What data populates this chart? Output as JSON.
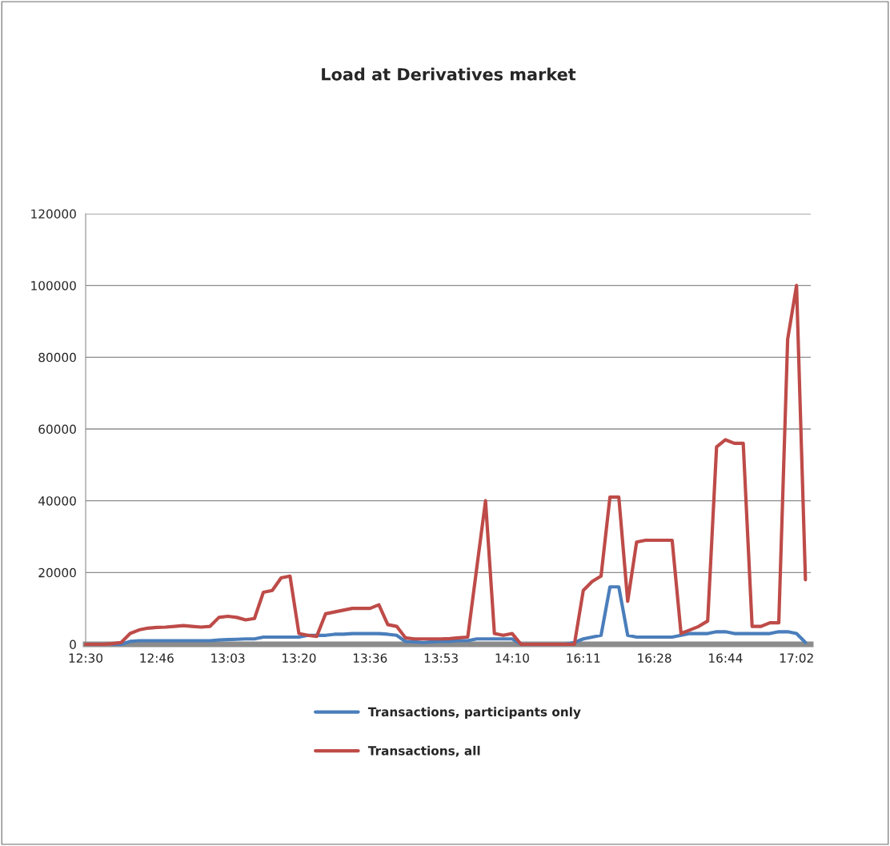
{
  "chart_data": {
    "type": "line",
    "title": "Load at Derivatives market",
    "categories": [
      "12:30",
      null,
      null,
      null,
      null,
      null,
      null,
      null,
      "12:46",
      null,
      null,
      null,
      null,
      null,
      null,
      null,
      "13:03",
      null,
      null,
      null,
      null,
      null,
      null,
      null,
      "13:20",
      null,
      null,
      null,
      null,
      null,
      null,
      null,
      "13:36",
      null,
      null,
      null,
      null,
      null,
      null,
      null,
      "13:53",
      null,
      null,
      null,
      null,
      null,
      null,
      null,
      "14:10",
      null,
      null,
      null,
      null,
      null,
      null,
      null,
      "16:11",
      null,
      null,
      null,
      null,
      null,
      null,
      null,
      "16:28",
      null,
      null,
      null,
      null,
      null,
      null,
      null,
      "16:44",
      null,
      null,
      null,
      null,
      null,
      null,
      null,
      "17:02",
      null
    ],
    "series": [
      {
        "name": "Transactions, participants only",
        "color": "#4a7ebb",
        "values": [
          null,
          null,
          null,
          0,
          0,
          800,
          1000,
          1000,
          1000,
          1000,
          1000,
          1000,
          1000,
          1000,
          1000,
          1200,
          1300,
          1400,
          1500,
          1500,
          2000,
          2000,
          2000,
          2000,
          2000,
          2500,
          2500,
          2500,
          2800,
          2800,
          3000,
          3000,
          3000,
          3000,
          2800,
          2500,
          800,
          700,
          500,
          700,
          800,
          800,
          1000,
          1000,
          1500,
          1500,
          1500,
          1500,
          1500,
          0,
          0,
          0,
          0,
          0,
          0,
          500,
          1500,
          2000,
          2500,
          16000,
          16000,
          2500,
          2000,
          2000,
          2000,
          2000,
          2000,
          2500,
          3000,
          3000,
          3000,
          3500,
          3500,
          3000,
          3000,
          3000,
          3000,
          3000,
          3500,
          3500,
          3000,
          500
        ]
      },
      {
        "name": "Transactions, all",
        "color": "#be4b48",
        "values": [
          0,
          0,
          0,
          200,
          500,
          3000,
          4000,
          4500,
          4700,
          4800,
          5000,
          5200,
          5000,
          4800,
          5000,
          7500,
          7800,
          7500,
          6800,
          7200,
          14500,
          15000,
          18500,
          19000,
          3000,
          2500,
          2200,
          8500,
          9000,
          9500,
          10000,
          10000,
          10000,
          11000,
          5500,
          5000,
          1800,
          1500,
          1500,
          1500,
          1500,
          1600,
          1800,
          2000,
          21000,
          40000,
          3000,
          2500,
          3000,
          0,
          0,
          0,
          0,
          0,
          0,
          0,
          15000,
          17500,
          19000,
          41000,
          41000,
          12000,
          28500,
          29000,
          29000,
          29000,
          29000,
          3000,
          4000,
          5000,
          6500,
          55000,
          57000,
          56000,
          56000,
          5000,
          5000,
          6000,
          6000,
          85000,
          100000,
          18000
        ]
      }
    ],
    "ylim": [
      0,
      120000
    ],
    "yticks": [
      0,
      20000,
      40000,
      60000,
      80000,
      100000,
      120000
    ],
    "grid": "y",
    "legend": "bottom"
  }
}
